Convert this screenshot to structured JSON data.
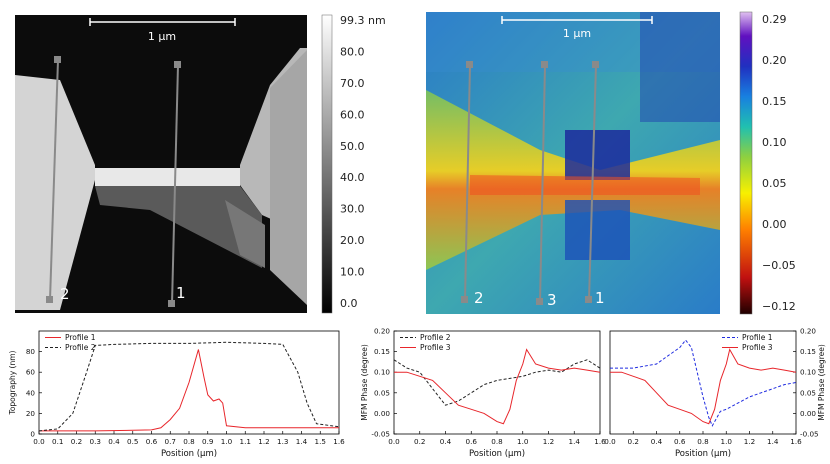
{
  "panels": {
    "topography": {
      "scale_bar": "1 µm",
      "colorbar_ticks": [
        "99.3 nm",
        "80.0",
        "70.0",
        "60.0",
        "50.0",
        "40.0",
        "30.0",
        "20.0",
        "10.0",
        "0.0"
      ],
      "line_labels": [
        "2",
        "1"
      ]
    },
    "phase": {
      "scale_bar": "1 µm",
      "colorbar_ticks": [
        "0.29",
        "0.20",
        "0.15",
        "0.10",
        "0.05",
        "0.00",
        "−0.05",
        "−0.12"
      ],
      "line_labels": [
        "2",
        "3",
        "1"
      ]
    }
  },
  "colors": {
    "profile_red": "#e8262b",
    "profile_black": "#222222",
    "profile_blue": "#1f2be0",
    "marker_gray": "#8a8a8a"
  },
  "chart_data": [
    {
      "type": "line",
      "xlabel": "Position (µm)",
      "ylabel": "Topography (nm)",
      "xlim": [
        0,
        1.6
      ],
      "ylim": [
        0,
        100
      ],
      "xticks": [
        "0.0",
        "0.1",
        "0.2",
        "0.3",
        "0.4",
        "0.5",
        "0.6",
        "0.7",
        "0.8",
        "0.9",
        "1.0",
        "1.1",
        "1.2",
        "1.3",
        "1.4",
        "1.5",
        "1.6"
      ],
      "yticks": [
        "0",
        "20",
        "40",
        "60",
        "80"
      ],
      "legend_position": "top-left",
      "series": [
        {
          "name": "Profile 1",
          "style": "solid",
          "color": "#e8262b",
          "points": [
            [
              0,
              3
            ],
            [
              0.3,
              3
            ],
            [
              0.6,
              4
            ],
            [
              0.65,
              6
            ],
            [
              0.7,
              14
            ],
            [
              0.75,
              25
            ],
            [
              0.8,
              50
            ],
            [
              0.85,
              82
            ],
            [
              0.88,
              55
            ],
            [
              0.9,
              38
            ],
            [
              0.93,
              32
            ],
            [
              0.96,
              34
            ],
            [
              0.98,
              30
            ],
            [
              1.0,
              8
            ],
            [
              1.1,
              6
            ],
            [
              1.3,
              6
            ],
            [
              1.6,
              6
            ]
          ]
        },
        {
          "name": "Profile 2",
          "style": "dashed",
          "color": "#222222",
          "points": [
            [
              0,
              3
            ],
            [
              0.1,
              5
            ],
            [
              0.18,
              20
            ],
            [
              0.25,
              58
            ],
            [
              0.3,
              86
            ],
            [
              0.4,
              87
            ],
            [
              0.6,
              88
            ],
            [
              0.8,
              88
            ],
            [
              1.0,
              89
            ],
            [
              1.2,
              88
            ],
            [
              1.3,
              87
            ],
            [
              1.38,
              60
            ],
            [
              1.43,
              30
            ],
            [
              1.48,
              10
            ],
            [
              1.6,
              7
            ]
          ]
        }
      ]
    },
    {
      "type": "line",
      "xlabel": "Position (µm)",
      "ylabel": "MFM Phase (degree)",
      "xlim": [
        0,
        1.6
      ],
      "ylim": [
        -0.05,
        0.2
      ],
      "xticks": [
        "0.0",
        "0.2",
        "0.4",
        "0.6",
        "0.8",
        "1.0",
        "1.2",
        "1.4",
        "1.6"
      ],
      "yticks": [
        "-0.05",
        "0.00",
        "0.05",
        "0.10",
        "0.15",
        "0.20"
      ],
      "legend_position": "top-left",
      "series": [
        {
          "name": "Profile 2",
          "style": "dashed",
          "color": "#222222",
          "points": [
            [
              0,
              0.13
            ],
            [
              0.1,
              0.11
            ],
            [
              0.2,
              0.1
            ],
            [
              0.3,
              0.06
            ],
            [
              0.4,
              0.02
            ],
            [
              0.5,
              0.03
            ],
            [
              0.6,
              0.05
            ],
            [
              0.7,
              0.07
            ],
            [
              0.8,
              0.08
            ],
            [
              0.9,
              0.085
            ],
            [
              1.0,
              0.09
            ],
            [
              1.1,
              0.1
            ],
            [
              1.2,
              0.105
            ],
            [
              1.3,
              0.1
            ],
            [
              1.4,
              0.12
            ],
            [
              1.5,
              0.13
            ],
            [
              1.6,
              0.11
            ]
          ]
        },
        {
          "name": "Profile 3",
          "style": "solid",
          "color": "#e8262b",
          "points": [
            [
              0,
              0.1
            ],
            [
              0.1,
              0.1
            ],
            [
              0.2,
              0.09
            ],
            [
              0.3,
              0.08
            ],
            [
              0.4,
              0.05
            ],
            [
              0.5,
              0.02
            ],
            [
              0.6,
              0.01
            ],
            [
              0.7,
              0
            ],
            [
              0.8,
              -0.02
            ],
            [
              0.85,
              -0.025
            ],
            [
              0.9,
              0.01
            ],
            [
              0.95,
              0.08
            ],
            [
              1.0,
              0.12
            ],
            [
              1.03,
              0.155
            ],
            [
              1.1,
              0.12
            ],
            [
              1.2,
              0.11
            ],
            [
              1.3,
              0.105
            ],
            [
              1.4,
              0.11
            ],
            [
              1.5,
              0.105
            ],
            [
              1.6,
              0.1
            ]
          ]
        }
      ]
    },
    {
      "type": "line",
      "xlabel": "Position (µm)",
      "ylabel": "MFM Phase (degree)",
      "xlim": [
        0,
        1.6
      ],
      "ylim": [
        -0.05,
        0.2
      ],
      "xticks": [
        "0.0",
        "0.2",
        "0.4",
        "0.6",
        "0.8",
        "1.0",
        "1.2",
        "1.4",
        "1.6"
      ],
      "yticks": [
        "-0.05",
        "0.00",
        "0.05",
        "0.10",
        "0.15",
        "0.20"
      ],
      "legend_position": "top-right",
      "series": [
        {
          "name": "Profile 1",
          "style": "dashed",
          "color": "#1f2be0",
          "points": [
            [
              0,
              0.11
            ],
            [
              0.2,
              0.11
            ],
            [
              0.4,
              0.12
            ],
            [
              0.5,
              0.14
            ],
            [
              0.6,
              0.16
            ],
            [
              0.65,
              0.178
            ],
            [
              0.7,
              0.16
            ],
            [
              0.75,
              0.1
            ],
            [
              0.8,
              0.04
            ],
            [
              0.85,
              -0.01
            ],
            [
              0.88,
              -0.03
            ],
            [
              0.92,
              -0.01
            ],
            [
              0.95,
              0.005
            ],
            [
              1.0,
              0.01
            ],
            [
              1.1,
              0.025
            ],
            [
              1.2,
              0.04
            ],
            [
              1.3,
              0.05
            ],
            [
              1.4,
              0.06
            ],
            [
              1.5,
              0.07
            ],
            [
              1.6,
              0.075
            ]
          ]
        },
        {
          "name": "Profile 3",
          "style": "solid",
          "color": "#e8262b",
          "points": [
            [
              0,
              0.1
            ],
            [
              0.1,
              0.1
            ],
            [
              0.2,
              0.09
            ],
            [
              0.3,
              0.08
            ],
            [
              0.4,
              0.05
            ],
            [
              0.5,
              0.02
            ],
            [
              0.6,
              0.01
            ],
            [
              0.7,
              0
            ],
            [
              0.8,
              -0.02
            ],
            [
              0.85,
              -0.025
            ],
            [
              0.9,
              0.01
            ],
            [
              0.95,
              0.08
            ],
            [
              1.0,
              0.12
            ],
            [
              1.03,
              0.155
            ],
            [
              1.1,
              0.12
            ],
            [
              1.2,
              0.11
            ],
            [
              1.3,
              0.105
            ],
            [
              1.4,
              0.11
            ],
            [
              1.5,
              0.105
            ],
            [
              1.6,
              0.1
            ]
          ]
        }
      ]
    }
  ]
}
